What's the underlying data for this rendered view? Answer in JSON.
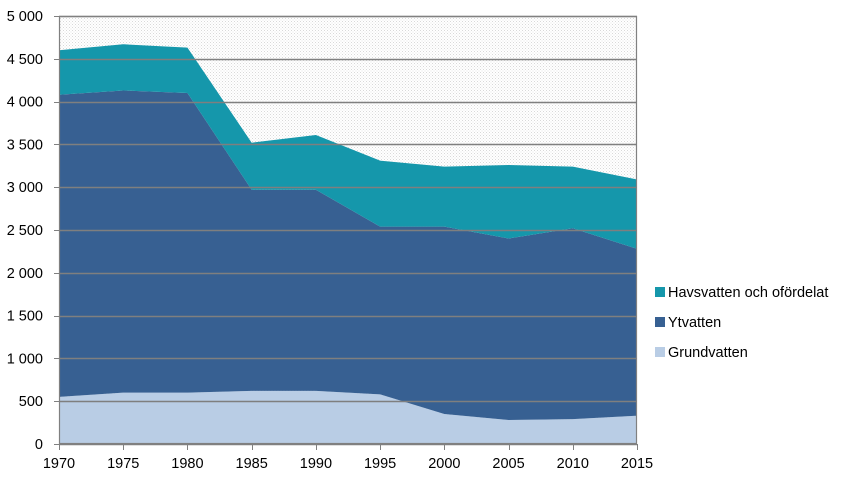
{
  "chart_data": {
    "type": "area",
    "stacked": true,
    "title": "",
    "xlabel": "",
    "ylabel": "",
    "x": [
      "1970",
      "1975",
      "1980",
      "1985",
      "1990",
      "1995",
      "2000",
      "2005",
      "2010",
      "2015"
    ],
    "ylim": [
      0,
      5000
    ],
    "yticks": [
      0,
      500,
      1000,
      1500,
      2000,
      2500,
      3000,
      3500,
      4000,
      4500,
      5000
    ],
    "ytick_labels": [
      "0",
      "500",
      "1 000",
      "1 500",
      "2 000",
      "2 500",
      "3 000",
      "3 500",
      "4 000",
      "4 500",
      "5 000"
    ],
    "grid": "horizontal",
    "legend_position": "right",
    "plot_background": "dotted light grey",
    "series": [
      {
        "name": "Grundvatten",
        "color": "#b9cde5",
        "values": [
          550,
          600,
          600,
          620,
          620,
          580,
          350,
          280,
          290,
          330
        ]
      },
      {
        "name": "Ytvatten",
        "color": "#376092",
        "values": [
          3530,
          3530,
          3500,
          2350,
          2350,
          1960,
          2190,
          2120,
          2230,
          1950
        ]
      },
      {
        "name": "Havsvatten och ofördelat",
        "color": "#1597ab",
        "values": [
          520,
          540,
          530,
          550,
          640,
          770,
          700,
          860,
          720,
          810
        ]
      }
    ],
    "legend_order": [
      "Havsvatten och ofördelat",
      "Ytvatten",
      "Grundvatten"
    ]
  }
}
